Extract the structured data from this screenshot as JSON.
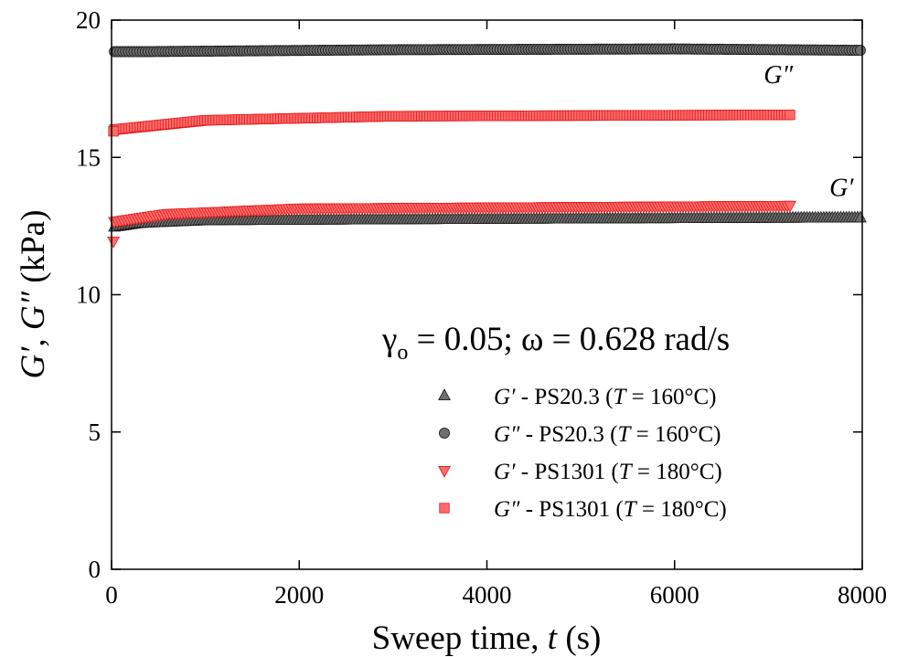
{
  "chart_data": {
    "type": "scatter",
    "xlabel": {
      "main": "Sweep time, ",
      "var": "t",
      "unit": " (s)"
    },
    "ylabel": {
      "g1": "G",
      "g1p": "′",
      "sep": ", ",
      "g2": "G",
      "g2p": "″",
      "unit": " (kPa)"
    },
    "xlim": [
      0,
      8000
    ],
    "ylim": [
      0,
      20
    ],
    "x_ticks": [
      0,
      2000,
      4000,
      6000,
      8000
    ],
    "y_ticks": [
      0,
      5,
      10,
      15,
      20
    ],
    "grid": false,
    "legend_placement": "lower-right",
    "condition": {
      "gamma": "γ",
      "gamma_sub": "o",
      "text": " = 0.05; ω = 0.628 rad/s"
    },
    "curve_labels": [
      {
        "text": "G″",
        "x": 6950,
        "y": 17.7
      },
      {
        "text": "G′",
        "x": 7650,
        "y": 13.6
      }
    ],
    "series": [
      {
        "name": "G′ - PS20.3 (T = 160°C)",
        "legend_var": "G′",
        "legend_mid": " - PS20.3 (",
        "legend_T": "T",
        "legend_end": " = 160°C)",
        "marker": "triangle-up",
        "color": "#6e6e6e",
        "stroke": "#1a1a1a",
        "x_start": 30,
        "x_end": 8000,
        "step": 30,
        "y_points": [
          [
            0,
            12.45
          ],
          [
            300,
            12.6
          ],
          [
            1000,
            12.7
          ],
          [
            4000,
            12.75
          ],
          [
            8000,
            12.8
          ]
        ]
      },
      {
        "name": "G″ - PS20.3 (T = 160°C)",
        "legend_var": "G″",
        "legend_mid": " - PS20.3 (",
        "legend_T": "T",
        "legend_end": " = 160°C)",
        "marker": "circle",
        "color": "#6e6e6e",
        "stroke": "#1a1a1a",
        "x_start": 30,
        "x_end": 8000,
        "step": 30,
        "y_points": [
          [
            0,
            18.85
          ],
          [
            300,
            18.85
          ],
          [
            3000,
            18.92
          ],
          [
            6000,
            18.95
          ],
          [
            8000,
            18.9
          ]
        ]
      },
      {
        "name": "G′ - PS1301 (T = 180°C)",
        "legend_var": "G′",
        "legend_mid": " - PS1301 (",
        "legend_T": "T",
        "legend_end": " = 180°C)",
        "marker": "triangle-down",
        "color": "#ff6b6b",
        "stroke": "#e01a1a",
        "x_start": 30,
        "x_end": 7240,
        "step": 30,
        "first_point": [
          20,
          11.95
        ],
        "y_points": [
          [
            0,
            12.65
          ],
          [
            600,
            12.95
          ],
          [
            2000,
            13.15
          ],
          [
            7240,
            13.25
          ]
        ]
      },
      {
        "name": "G″ - PS1301 (T = 180°C)",
        "legend_var": "G″",
        "legend_mid": " - PS1301 (",
        "legend_T": "T",
        "legend_end": " = 180°C)",
        "marker": "square",
        "color": "#ff6b6b",
        "stroke": "#e01a1a",
        "x_start": 30,
        "x_end": 7240,
        "step": 30,
        "first_point": [
          20,
          15.95
        ],
        "y_points": [
          [
            0,
            16.0
          ],
          [
            1000,
            16.35
          ],
          [
            3000,
            16.5
          ],
          [
            7240,
            16.55
          ]
        ]
      }
    ]
  }
}
